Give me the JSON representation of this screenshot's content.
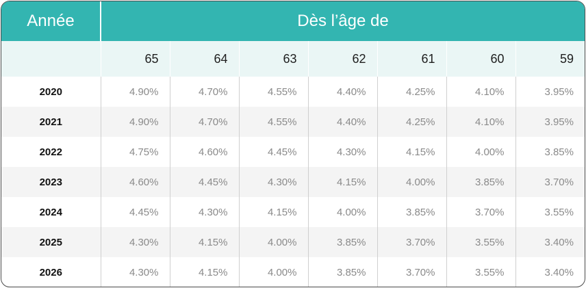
{
  "header": {
    "year_label": "Année",
    "age_label": "Dès l’âge de"
  },
  "ages": [
    "65",
    "64",
    "63",
    "62",
    "61",
    "60",
    "59"
  ],
  "rows": [
    {
      "year": "2020",
      "values": [
        "4.90%",
        "4.70%",
        "4.55%",
        "4.40%",
        "4.25%",
        "4.10%",
        "3.95%"
      ]
    },
    {
      "year": "2021",
      "values": [
        "4.90%",
        "4.70%",
        "4.55%",
        "4.40%",
        "4.25%",
        "4.10%",
        "3.95%"
      ]
    },
    {
      "year": "2022",
      "values": [
        "4.75%",
        "4.60%",
        "4.45%",
        "4.30%",
        "4.15%",
        "4.00%",
        "3.85%"
      ]
    },
    {
      "year": "2023",
      "values": [
        "4.60%",
        "4.45%",
        "4.30%",
        "4.15%",
        "4.00%",
        "3.85%",
        "3.70%"
      ]
    },
    {
      "year": "2024",
      "values": [
        "4.45%",
        "4.30%",
        "4.15%",
        "4.00%",
        "3.85%",
        "3.70%",
        "3.55%"
      ]
    },
    {
      "year": "2025",
      "values": [
        "4.30%",
        "4.15%",
        "4.00%",
        "3.85%",
        "3.70%",
        "3.55%",
        "3.40%"
      ]
    },
    {
      "year": "2026",
      "values": [
        "4.30%",
        "4.15%",
        "4.00%",
        "3.85%",
        "3.70%",
        "3.55%",
        "3.40%"
      ]
    }
  ],
  "colors": {
    "header_bg": "#33b5b1",
    "age_row_bg": "#eaf6f5",
    "alt_row_bg": "#f4f4f4"
  }
}
